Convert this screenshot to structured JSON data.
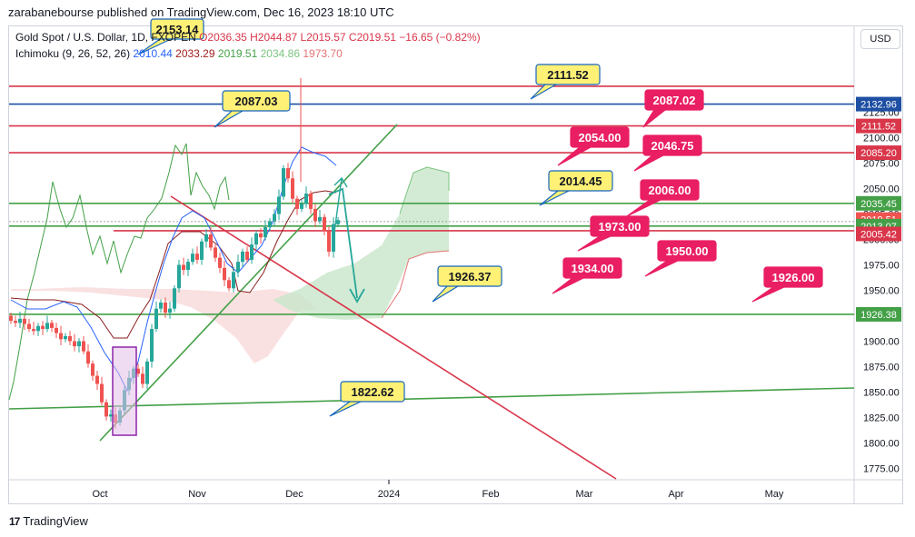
{
  "header": {
    "publisher": "zarabanebourse published on TradingView.com, Dec 16, 2023 18:10 UTC"
  },
  "legend": {
    "instrument": "Gold Spot / U.S. Dollar, 1D, FXOPEN",
    "ohlc": "O2036.35  H2044.87  L2015.57  C2019.51  −16.65 (−0.82%)",
    "ichimoku_label": "Ichimoku (9, 26, 52, 26)",
    "ichimoku_values": [
      "2010.44",
      "2033.29",
      "2019.51",
      "2034.86",
      "1973.70"
    ]
  },
  "currency_button": "USD",
  "footer": {
    "brand": "TradingView",
    "logo": "17"
  },
  "colors": {
    "up": "#26a69a",
    "down": "#ef5350",
    "tenkan": "#2962ff",
    "kijun": "#8b1e1e",
    "chikou": "#43a047",
    "cloud_bull": "#c8e6c9",
    "cloud_bear": "#f8d7d7",
    "red_level": "#d9364a",
    "green_level": "#43a047",
    "blue_level": "#1e4fa3",
    "callout_yellow": "#fff176",
    "callout_red": "#e91e63"
  },
  "chart_data": {
    "type": "candlestick",
    "instrument": "Gold Spot / U.S. Dollar",
    "timeframe": "1D",
    "x_ticks": [
      "Oct",
      "Nov",
      "Dec",
      "2024",
      "Feb",
      "Mar",
      "Apr",
      "May"
    ],
    "y_ticks": [
      1775,
      1800,
      1825,
      1850,
      1875,
      1900,
      1925,
      1950,
      1975,
      2000,
      2025,
      2050,
      2075,
      2100,
      2125
    ],
    "ylim": [
      1762,
      2160
    ],
    "price_labels": [
      {
        "value": 2132.96,
        "text": "2132.96",
        "color": "blue"
      },
      {
        "value": 2111.52,
        "text": "2111.52",
        "color": "red"
      },
      {
        "value": 2085.2,
        "text": "2085.20",
        "color": "red"
      },
      {
        "value": 2035.45,
        "text": "2035.45",
        "color": "green"
      },
      {
        "value": 2019.51,
        "text": "2019.51",
        "color": "red"
      },
      {
        "value": 2013.07,
        "text": "2013.07",
        "color": "green"
      },
      {
        "value": 2005.42,
        "text": "2005.42",
        "color": "red"
      },
      {
        "value": 1926.38,
        "text": "1926.38",
        "color": "green"
      }
    ],
    "horizontal_levels": [
      {
        "value": 2150.5,
        "color": "red"
      },
      {
        "value": 2132.96,
        "color": "blue"
      },
      {
        "value": 2111.52,
        "color": "red"
      },
      {
        "value": 2085.2,
        "color": "red"
      },
      {
        "value": 2035.45,
        "color": "green"
      },
      {
        "value": 2013.07,
        "color": "green"
      },
      {
        "value": 2008.5,
        "color": "red"
      },
      {
        "value": 1926.38,
        "color": "green"
      }
    ],
    "callouts": [
      {
        "text": "2153.14",
        "style": "yellow"
      },
      {
        "text": "2111.52",
        "style": "yellow"
      },
      {
        "text": "2087.03",
        "style": "yellow"
      },
      {
        "text": "2087.02",
        "style": "red"
      },
      {
        "text": "2054.00",
        "style": "red"
      },
      {
        "text": "2046.75",
        "style": "red"
      },
      {
        "text": "2014.45",
        "style": "yellow"
      },
      {
        "text": "2006.00",
        "style": "red"
      },
      {
        "text": "1973.00",
        "style": "red"
      },
      {
        "text": "1950.00",
        "style": "red"
      },
      {
        "text": "1934.00",
        "style": "red"
      },
      {
        "text": "1926.37",
        "style": "yellow"
      },
      {
        "text": "1926.00",
        "style": "red"
      },
      {
        "text": "1822.62",
        "style": "yellow"
      }
    ]
  }
}
